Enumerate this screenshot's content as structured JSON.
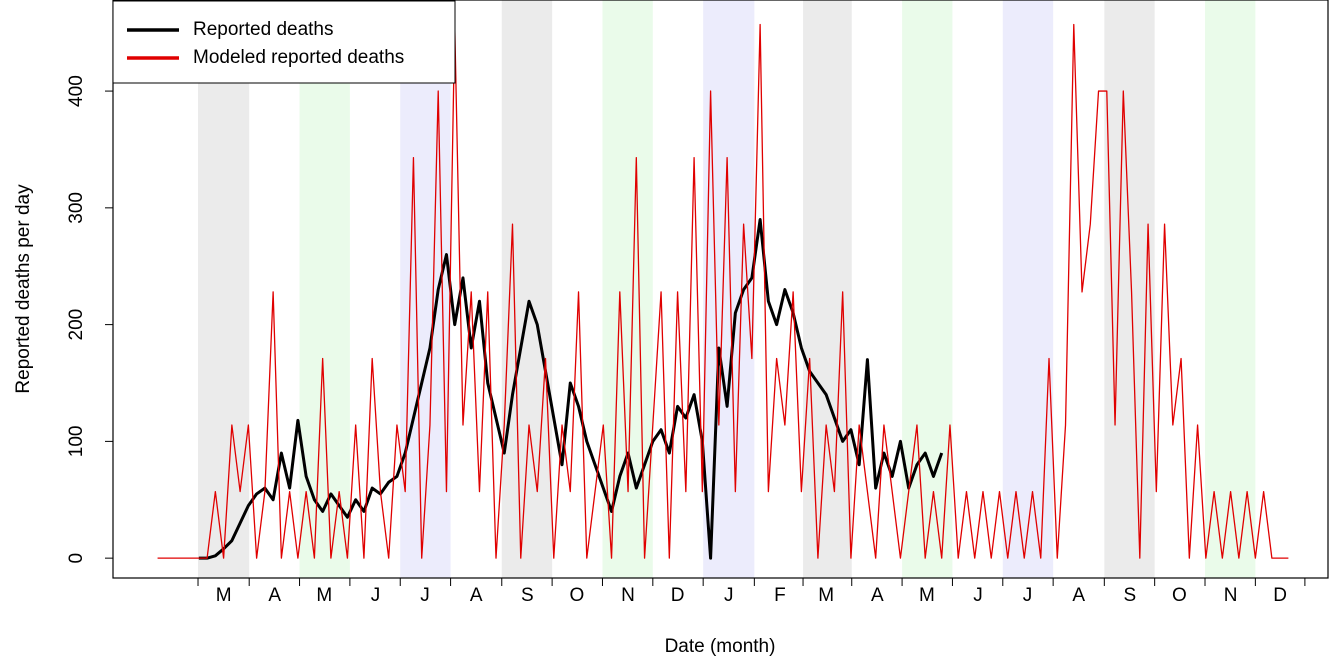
{
  "chart_data": {
    "type": "line",
    "y_label": "Reported deaths per day",
    "x_label": "Date (month)",
    "xlim": [
      -52,
      684
    ],
    "ylim": [
      -17,
      478
    ],
    "yticks": [
      0,
      100,
      200,
      300,
      400
    ],
    "xticks": [
      {
        "value": 15,
        "label": "M"
      },
      {
        "value": 46,
        "label": "A"
      },
      {
        "value": 76,
        "label": "M"
      },
      {
        "value": 107,
        "label": "J"
      },
      {
        "value": 137,
        "label": "J"
      },
      {
        "value": 168,
        "label": "A"
      },
      {
        "value": 199,
        "label": "S"
      },
      {
        "value": 229,
        "label": "O"
      },
      {
        "value": 260,
        "label": "N"
      },
      {
        "value": 290,
        "label": "D"
      },
      {
        "value": 321,
        "label": "J"
      },
      {
        "value": 352,
        "label": "F"
      },
      {
        "value": 380,
        "label": "M"
      },
      {
        "value": 411,
        "label": "A"
      },
      {
        "value": 441,
        "label": "M"
      },
      {
        "value": 472,
        "label": "J"
      },
      {
        "value": 502,
        "label": "J"
      },
      {
        "value": 533,
        "label": "A"
      },
      {
        "value": 564,
        "label": "S"
      },
      {
        "value": 594,
        "label": "O"
      },
      {
        "value": 625,
        "label": "N"
      },
      {
        "value": 655,
        "label": "D"
      }
    ],
    "bands": [
      {
        "tick": 0,
        "color": "#ebebeb"
      },
      {
        "tick": 2,
        "color": "#eafbea"
      },
      {
        "tick": 4,
        "color": "#ececfc"
      },
      {
        "tick": 6,
        "color": "#ebebeb"
      },
      {
        "tick": 8,
        "color": "#eafbea"
      },
      {
        "tick": 10,
        "color": "#ececfc"
      },
      {
        "tick": 12,
        "color": "#ebebeb"
      },
      {
        "tick": 14,
        "color": "#eafbea"
      },
      {
        "tick": 16,
        "color": "#ececfc"
      },
      {
        "tick": 18,
        "color": "#ebebeb"
      },
      {
        "tick": 20,
        "color": "#eafbea"
      }
    ],
    "legend": "top-left",
    "series": [
      {
        "name": "Reported deaths",
        "color": "#000000",
        "width": 3,
        "x": [
          0,
          5,
          10,
          15,
          20,
          25,
          30,
          35,
          40,
          45,
          50,
          55,
          60,
          65,
          70,
          75,
          80,
          85,
          90,
          95,
          100,
          105,
          110,
          115,
          120,
          125,
          130,
          135,
          140,
          145,
          150,
          155,
          160,
          165,
          170,
          175,
          180,
          185,
          190,
          195,
          200,
          205,
          210,
          215,
          220,
          225,
          230,
          235,
          240,
          245,
          250,
          255,
          260,
          265,
          270,
          275,
          280,
          285,
          290,
          295,
          300,
          305,
          310,
          315,
          320,
          325,
          330,
          335,
          340,
          345,
          350,
          355,
          360,
          365,
          370,
          375,
          380,
          385,
          390,
          395,
          400,
          405,
          410,
          415,
          420,
          425,
          430,
          435,
          440,
          445,
          450
        ],
        "values": [
          0,
          0,
          2,
          8,
          15,
          30,
          45,
          55,
          60,
          50,
          90,
          60,
          118,
          70,
          50,
          40,
          55,
          45,
          35,
          50,
          40,
          60,
          55,
          65,
          70,
          90,
          120,
          150,
          180,
          230,
          260,
          200,
          240,
          180,
          220,
          150,
          120,
          90,
          140,
          180,
          220,
          200,
          160,
          120,
          80,
          150,
          130,
          100,
          80,
          60,
          40,
          70,
          90,
          60,
          80,
          100,
          110,
          90,
          130,
          120,
          140,
          100,
          0,
          180,
          130,
          210,
          230,
          240,
          290,
          220,
          200,
          230,
          210,
          180,
          160,
          150,
          140,
          120,
          100,
          110,
          80,
          170,
          60,
          90,
          70,
          100,
          60,
          80,
          90,
          70,
          90
        ]
      },
      {
        "name": "Modeled reported deaths",
        "color": "#e00000",
        "width": 1.3,
        "x": [
          -25,
          -20,
          -15,
          -10,
          -5,
          0,
          5,
          10,
          15,
          20,
          25,
          30,
          35,
          40,
          45,
          50,
          55,
          60,
          65,
          70,
          75,
          80,
          85,
          90,
          95,
          100,
          105,
          110,
          115,
          120,
          125,
          130,
          135,
          140,
          145,
          150,
          155,
          160,
          165,
          170,
          175,
          180,
          185,
          190,
          195,
          200,
          205,
          210,
          215,
          220,
          225,
          230,
          235,
          240,
          245,
          250,
          255,
          260,
          265,
          270,
          275,
          280,
          285,
          290,
          295,
          300,
          305,
          310,
          315,
          320,
          325,
          330,
          335,
          340,
          345,
          350,
          355,
          360,
          365,
          370,
          375,
          380,
          385,
          390,
          395,
          400,
          405,
          410,
          415,
          420,
          425,
          430,
          435,
          440,
          445,
          450,
          455,
          460,
          465,
          470,
          475,
          480,
          485,
          490,
          495,
          500,
          505,
          510,
          515,
          520,
          525,
          530,
          535,
          540,
          545,
          550,
          555,
          560,
          565,
          570,
          575,
          580,
          585,
          590,
          595,
          600,
          605,
          610,
          615,
          620,
          625,
          630,
          635,
          640,
          645,
          650,
          655,
          660
        ],
        "values": [
          0,
          0,
          0,
          0,
          0,
          0,
          0,
          57,
          0,
          114,
          57,
          114,
          0,
          57,
          228,
          0,
          57,
          0,
          57,
          0,
          171,
          0,
          57,
          0,
          114,
          0,
          171,
          57,
          0,
          114,
          57,
          343,
          0,
          114,
          400,
          57,
          457,
          114,
          228,
          57,
          228,
          0,
          114,
          286,
          0,
          114,
          57,
          171,
          0,
          114,
          57,
          228,
          0,
          57,
          114,
          0,
          228,
          57,
          343,
          0,
          114,
          228,
          0,
          228,
          57,
          343,
          57,
          400,
          114,
          343,
          57,
          286,
          171,
          457,
          57,
          171,
          114,
          228,
          57,
          171,
          0,
          114,
          57,
          228,
          0,
          114,
          57,
          0,
          114,
          57,
          0,
          57,
          114,
          0,
          57,
          0,
          114,
          0,
          57,
          0,
          57,
          0,
          57,
          0,
          57,
          0,
          57,
          0,
          171,
          0,
          114,
          457,
          228,
          286,
          400,
          400,
          114,
          400,
          228,
          0,
          286,
          57,
          286,
          114,
          171,
          0,
          114,
          0,
          57,
          0,
          57,
          0,
          57,
          0,
          57,
          0,
          0,
          0
        ]
      }
    ]
  }
}
